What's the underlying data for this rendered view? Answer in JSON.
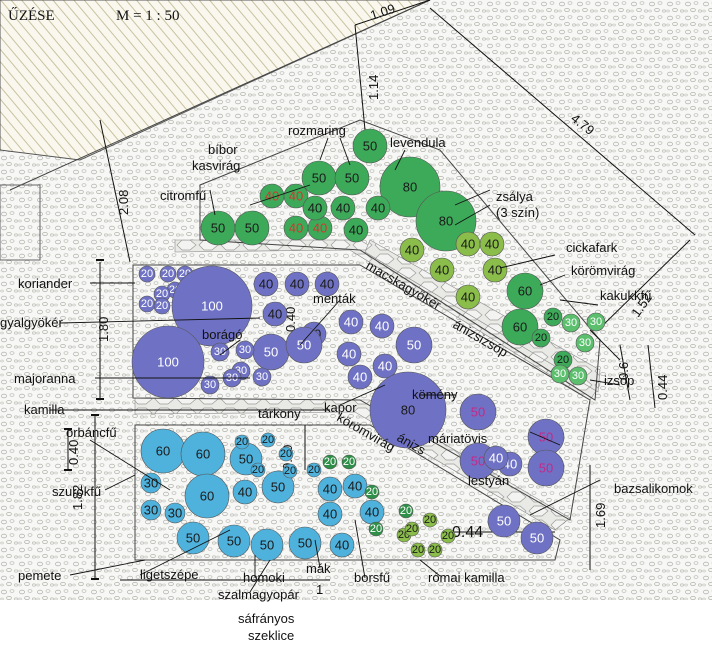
{
  "title": {
    "heading": "ŰZÉSE",
    "scale": "M = 1 : 50"
  },
  "dimensions": {
    "top": "1.09",
    "diag_long": "4.79",
    "upper_height": "2.08",
    "upper_top": "1.14",
    "right_upper": "1.52",
    "mid_height": "1.80",
    "mid_inner": "0.40",
    "right_mid_a": "0.6",
    "right_mid_b": "0.44",
    "lower_small": "0.40",
    "lower_height": "1.82",
    "lower_inner": "0.40",
    "right_lower": "1.69",
    "bottom_gap": "0.44",
    "bottom_width": "1"
  },
  "labels": {
    "bibor_kasvirag_1": "bíbor",
    "bibor_kasvirag_2": "kasvirág",
    "rozmaring": "rozmaring",
    "levendula": "levendula",
    "citromfu": "citromfű",
    "zsalya_1": "zsálya",
    "zsalya_2": "(3 szín)",
    "cickafark": "cickafark",
    "koromvirag_top": "körömvirág",
    "kakukkfu": "kakukkfű",
    "koriander": "koriander",
    "gyalgyoker": "gyalgyökér",
    "mentak": "menták",
    "macskagyoker": "macskagyökér",
    "anizsizsop": "ánizsizsóp",
    "borago": "borágó",
    "majoranna": "majoranna",
    "izsop": "izsóp",
    "kamilla": "kamilla",
    "tarkony": "tárkony",
    "kapor": "kapor",
    "komeny": "kömény",
    "orbancfu": "orbáncfű",
    "koromvirag_mid": "körömvirág",
    "anizs": "ánizs",
    "mariatovis": "máriatövis",
    "lestyan": "lestyán",
    "bazsalikomok": "bazsalikomok",
    "szurokfu": "szurokfű",
    "pemete": "pemete",
    "ligetszepe": "ligetszépe",
    "homoki": "homoki",
    "szalmagyopar": "szalmagyopár",
    "mak": "mák",
    "borsfu": "borsfű",
    "romai_kamilla": "római kamilla",
    "safranyos": "sáfrányos",
    "szeklice": "szeklice"
  },
  "colors": {
    "green": "#3daa5a",
    "green_light": "#5cbf6e",
    "green_dark": "#2e8f48",
    "olive": "#8bbd4a",
    "purple": "#6f72c4",
    "purple_dark": "#5b5fb8",
    "cyan": "#4fb2dc",
    "cyan_light": "#6cc4e6",
    "text_red": "#d9342b",
    "text_magenta": "#c22a8a",
    "hatch": "#c8c2a0"
  },
  "circles": [
    {
      "v": "50",
      "c": "green",
      "tc": "dark"
    },
    {
      "v": "50",
      "c": "green",
      "tc": "dark"
    },
    {
      "v": "50",
      "c": "green",
      "tc": "dark"
    },
    {
      "v": "80",
      "c": "green",
      "tc": "dark"
    },
    {
      "v": "80",
      "c": "green",
      "tc": "dark"
    },
    {
      "v": "50",
      "c": "green",
      "tc": "dark"
    },
    {
      "v": "50",
      "c": "green",
      "tc": "dark"
    },
    {
      "v": "40",
      "c": "green",
      "tc": "red"
    },
    {
      "v": "40",
      "c": "green",
      "tc": "red"
    },
    {
      "v": "40",
      "c": "green",
      "tc": "red"
    },
    {
      "v": "40",
      "c": "green",
      "tc": "red"
    },
    {
      "v": "40",
      "c": "green",
      "tc": "dark"
    },
    {
      "v": "40",
      "c": "green",
      "tc": "dark"
    },
    {
      "v": "40",
      "c": "green",
      "tc": "dark"
    },
    {
      "v": "40",
      "c": "green",
      "tc": "dark"
    },
    {
      "v": "40",
      "c": "olive",
      "tc": "dark"
    },
    {
      "v": "40",
      "c": "olive",
      "tc": "dark"
    },
    {
      "v": "40",
      "c": "olive",
      "tc": "dark"
    },
    {
      "v": "40",
      "c": "olive",
      "tc": "dark"
    },
    {
      "v": "40",
      "c": "olive",
      "tc": "dark"
    },
    {
      "v": "40",
      "c": "olive",
      "tc": "dark"
    },
    {
      "v": "60",
      "c": "green",
      "tc": "dark"
    },
    {
      "v": "60",
      "c": "green",
      "tc": "dark"
    },
    {
      "v": "20",
      "c": "green",
      "tc": "dark"
    },
    {
      "v": "20",
      "c": "green",
      "tc": "dark"
    },
    {
      "v": "20",
      "c": "green",
      "tc": "dark"
    },
    {
      "v": "30",
      "c": "green_light",
      "tc": "white"
    },
    {
      "v": "30",
      "c": "green_light",
      "tc": "white"
    },
    {
      "v": "30",
      "c": "green_light",
      "tc": "white"
    },
    {
      "v": "30",
      "c": "green_light",
      "tc": "white"
    },
    {
      "v": "30",
      "c": "green_light",
      "tc": "white"
    },
    {
      "v": "20",
      "c": "purple",
      "tc": "white"
    },
    {
      "v": "20",
      "c": "purple",
      "tc": "white"
    },
    {
      "v": "20",
      "c": "purple",
      "tc": "white"
    },
    {
      "v": "20",
      "c": "purple",
      "tc": "white"
    },
    {
      "v": "20",
      "c": "purple",
      "tc": "white"
    },
    {
      "v": "20",
      "c": "purple",
      "tc": "white"
    },
    {
      "v": "20",
      "c": "purple",
      "tc": "white"
    },
    {
      "v": "20",
      "c": "purple",
      "tc": "white"
    },
    {
      "v": "100",
      "c": "purple",
      "tc": "white"
    },
    {
      "v": "100",
      "c": "purple",
      "tc": "white"
    },
    {
      "v": "40",
      "c": "purple",
      "tc": "dark"
    },
    {
      "v": "40",
      "c": "purple",
      "tc": "dark"
    },
    {
      "v": "40",
      "c": "purple",
      "tc": "dark"
    },
    {
      "v": "40",
      "c": "purple",
      "tc": "dark"
    },
    {
      "v": "40",
      "c": "purple",
      "tc": "dark"
    },
    {
      "v": "40",
      "c": "purple",
      "tc": "white"
    },
    {
      "v": "40",
      "c": "purple",
      "tc": "white"
    },
    {
      "v": "40",
      "c": "purple",
      "tc": "white"
    },
    {
      "v": "40",
      "c": "purple",
      "tc": "white"
    },
    {
      "v": "40",
      "c": "purple",
      "tc": "white"
    },
    {
      "v": "50",
      "c": "purple",
      "tc": "white"
    },
    {
      "v": "50",
      "c": "purple",
      "tc": "white"
    },
    {
      "v": "50",
      "c": "purple",
      "tc": "white"
    },
    {
      "v": "50",
      "c": "purple",
      "tc": "white"
    },
    {
      "v": "30",
      "c": "purple",
      "tc": "white"
    },
    {
      "v": "30",
      "c": "purple",
      "tc": "white"
    },
    {
      "v": "30",
      "c": "purple",
      "tc": "white"
    },
    {
      "v": "30",
      "c": "purple",
      "tc": "white"
    },
    {
      "v": "30",
      "c": "purple",
      "tc": "white"
    },
    {
      "v": "30",
      "c": "purple",
      "tc": "white"
    },
    {
      "v": "80",
      "c": "purple",
      "tc": "dark"
    },
    {
      "v": "50",
      "c": "purple",
      "tc": "magenta"
    },
    {
      "v": "50",
      "c": "purple",
      "tc": "magenta"
    },
    {
      "v": "50",
      "c": "purple",
      "tc": "magenta"
    },
    {
      "v": "50",
      "c": "purple",
      "tc": "magenta"
    },
    {
      "v": "40",
      "c": "purple",
      "tc": "white"
    },
    {
      "v": "40",
      "c": "purple",
      "tc": "white"
    },
    {
      "v": "60",
      "c": "cyan",
      "tc": "dark"
    },
    {
      "v": "60",
      "c": "cyan",
      "tc": "dark"
    },
    {
      "v": "60",
      "c": "cyan",
      "tc": "dark"
    },
    {
      "v": "30",
      "c": "cyan",
      "tc": "dark"
    },
    {
      "v": "30",
      "c": "cyan",
      "tc": "dark"
    },
    {
      "v": "30",
      "c": "cyan",
      "tc": "dark"
    },
    {
      "v": "50",
      "c": "cyan",
      "tc": "dark"
    },
    {
      "v": "50",
      "c": "cyan",
      "tc": "dark"
    },
    {
      "v": "50",
      "c": "cyan",
      "tc": "dark"
    },
    {
      "v": "50",
      "c": "cyan",
      "tc": "dark"
    },
    {
      "v": "50",
      "c": "cyan",
      "tc": "dark"
    },
    {
      "v": "50",
      "c": "cyan",
      "tc": "dark"
    },
    {
      "v": "40",
      "c": "cyan",
      "tc": "dark"
    },
    {
      "v": "40",
      "c": "cyan",
      "tc": "dark"
    },
    {
      "v": "40",
      "c": "cyan",
      "tc": "dark"
    },
    {
      "v": "40",
      "c": "cyan",
      "tc": "dark"
    },
    {
      "v": "40",
      "c": "cyan",
      "tc": "dark"
    },
    {
      "v": "40",
      "c": "cyan",
      "tc": "dark"
    },
    {
      "v": "20",
      "c": "cyan",
      "tc": "dark"
    },
    {
      "v": "20",
      "c": "cyan",
      "tc": "dark"
    },
    {
      "v": "20",
      "c": "cyan",
      "tc": "dark"
    },
    {
      "v": "20",
      "c": "cyan",
      "tc": "dark"
    },
    {
      "v": "20",
      "c": "cyan",
      "tc": "dark"
    },
    {
      "v": "20",
      "c": "cyan",
      "tc": "dark"
    },
    {
      "v": "20",
      "c": "green_dark",
      "tc": "white"
    },
    {
      "v": "20",
      "c": "green_dark",
      "tc": "white"
    },
    {
      "v": "20",
      "c": "green_dark",
      "tc": "white"
    },
    {
      "v": "20",
      "c": "green_dark",
      "tc": "white"
    },
    {
      "v": "20",
      "c": "green_dark",
      "tc": "white"
    },
    {
      "v": "20",
      "c": "olive",
      "tc": "dark"
    },
    {
      "v": "20",
      "c": "olive",
      "tc": "dark"
    },
    {
      "v": "20",
      "c": "olive",
      "tc": "dark"
    },
    {
      "v": "20",
      "c": "olive",
      "tc": "dark"
    },
    {
      "v": "20",
      "c": "olive",
      "tc": "dark"
    },
    {
      "v": "20",
      "c": "olive",
      "tc": "dark"
    },
    {
      "v": "50",
      "c": "purple",
      "tc": "white"
    },
    {
      "v": "50",
      "c": "purple",
      "tc": "white"
    }
  ]
}
